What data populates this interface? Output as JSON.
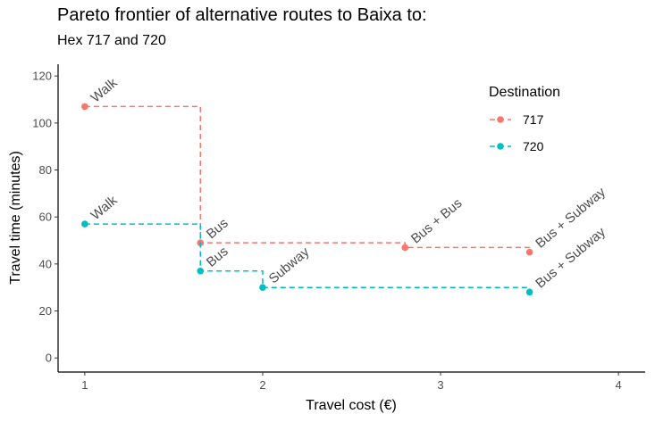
{
  "chart_data": {
    "type": "line",
    "title": "Pareto frontier of alternative routes to Baixa to:",
    "subtitle": "Hex 717 and 720",
    "xlabel": "Travel cost (€)",
    "ylabel": "Travel time (minutes)",
    "xlim": [
      0.85,
      4.15
    ],
    "ylim": [
      -6,
      125
    ],
    "xticks": [
      1,
      2,
      3,
      4
    ],
    "yticks": [
      0,
      20,
      40,
      60,
      80,
      100,
      120
    ],
    "grid": false,
    "step": "post",
    "line_style": "dashed",
    "legend": {
      "title": "Destination",
      "position": "top-right"
    },
    "series": [
      {
        "name": "717",
        "color": "#F8766D",
        "points": [
          {
            "x": 1.0,
            "y": 107,
            "label": "Walk"
          },
          {
            "x": 1.65,
            "y": 49,
            "label": "Bus"
          },
          {
            "x": 2.8,
            "y": 47,
            "label": "Bus + Bus"
          },
          {
            "x": 3.5,
            "y": 45,
            "label": "Bus + Subway"
          }
        ]
      },
      {
        "name": "720",
        "color": "#00BFC4",
        "points": [
          {
            "x": 1.0,
            "y": 57,
            "label": "Walk"
          },
          {
            "x": 1.65,
            "y": 37,
            "label": "Bus"
          },
          {
            "x": 2.0,
            "y": 30,
            "label": "Subway"
          },
          {
            "x": 3.5,
            "y": 28,
            "label": "Bus + Subway"
          }
        ]
      }
    ]
  }
}
